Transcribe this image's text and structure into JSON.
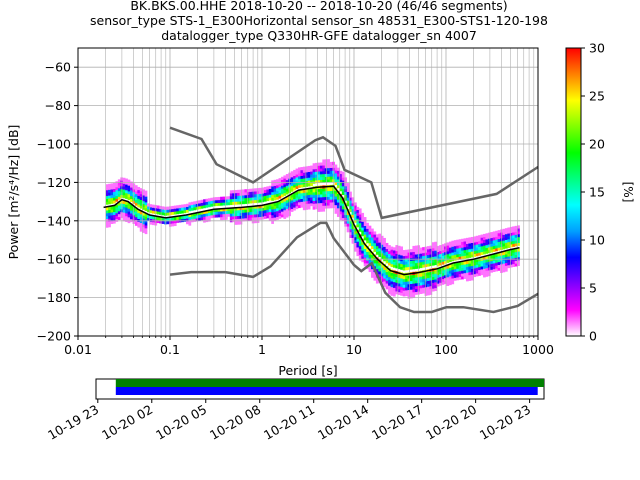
{
  "header": {
    "line1": "BK.BKS.00.HHE   2018-10-20 -- 2018-10-20  (46/46 segments)",
    "line2": "sensor_type STS-1_E300Horizontal sensor_sn 48531_E300-STS1-120-198",
    "line3": "datalogger_type Q330HR-GFE datalogger_sn 4007"
  },
  "chart_data": [
    {
      "type": "heatmap",
      "xlabel": "Period [s]",
      "ylabel": "Power [m²/s⁴/Hz] [dB]",
      "xscale": "log",
      "xlim": [
        0.01,
        1000
      ],
      "ylim": [
        -200,
        -50
      ],
      "x_ticks": [
        0.01,
        0.1,
        1,
        10,
        100,
        1000
      ],
      "x_tick_labels": [
        "0.01",
        "0.1",
        "1",
        "10",
        "100",
        "1000"
      ],
      "y_ticks": [
        -200,
        -180,
        -160,
        -140,
        -120,
        -100,
        -80,
        -60
      ],
      "y_tick_labels": [
        "−200",
        "−180",
        "−160",
        "−140",
        "−120",
        "−100",
        "−80",
        "−60"
      ],
      "grid": true,
      "colorbar": {
        "label": "[%]",
        "range": [
          0,
          30
        ],
        "ticks": [
          0,
          5,
          10,
          15,
          20,
          25,
          30
        ],
        "tick_labels": [
          "0",
          "5",
          "10",
          "15",
          "20",
          "25",
          "30"
        ],
        "colors": [
          "#ffffff",
          "#ff00ff",
          "#7f00ff",
          "#0000ff",
          "#00a0ff",
          "#00ffff",
          "#00ff80",
          "#00ff00",
          "#80ff00",
          "#ffff00",
          "#ff8000",
          "#ff0000"
        ]
      },
      "noise_models": {
        "color": "#666666",
        "high_model": {
          "x": [
            0.1,
            0.22,
            0.32,
            0.8,
            3.8,
            4.6,
            6.3,
            7.9,
            15.4,
            20,
            354.8,
            1000
          ],
          "y": [
            -91.5,
            -97.4,
            -110.5,
            -120,
            -98,
            -96.5,
            -101,
            -113.5,
            -120,
            -138.5,
            -126,
            -112
          ]
        },
        "low_model": {
          "x": [
            0.1,
            0.17,
            0.4,
            0.8,
            1.24,
            2.4,
            4.3,
            5,
            6,
            10,
            12,
            15.6,
            21.9,
            31.6,
            45,
            70,
            101,
            154,
            328,
            600,
            1000
          ],
          "y": [
            -168,
            -166.7,
            -166.7,
            -169.2,
            -163.7,
            -148.6,
            -141.1,
            -141.1,
            -149,
            -163,
            -166.2,
            -162.1,
            -177.5,
            -185,
            -187.5,
            -187.5,
            -185,
            -185,
            -187.5,
            -184.4,
            -178
          ]
        }
      },
      "psd_data_range_x": [
        0.02,
        630
      ],
      "psd_spread_db": [
        10,
        4,
        5,
        8,
        10,
        12,
        12,
        12,
        10,
        10
      ],
      "mean_curve": {
        "color": "#000000",
        "x": [
          0.019,
          0.025,
          0.03,
          0.035,
          0.045,
          0.06,
          0.09,
          0.15,
          0.3,
          0.6,
          1.0,
          1.5,
          2.5,
          4.0,
          6.0,
          7.5,
          10,
          13,
          18,
          25,
          35,
          50,
          80,
          120,
          200,
          350,
          500,
          630
        ],
        "y": [
          -133,
          -132,
          -129,
          -130,
          -134,
          -137,
          -138.5,
          -137,
          -134,
          -133,
          -132,
          -130,
          -124,
          -122.5,
          -122,
          -128,
          -142,
          -152,
          -160,
          -166,
          -168,
          -167,
          -165,
          -162,
          -160,
          -157,
          -155,
          -154
        ]
      }
    },
    {
      "type": "bar",
      "title": "",
      "x_tick_labels": [
        "10-19 23",
        "10-20 02",
        "10-20 05",
        "10-20 08",
        "10-20 11",
        "10-20 14",
        "10-20 17",
        "10-20 20",
        "10-20 23"
      ],
      "xlim_hours": [
        -1.1,
        23.8
      ],
      "x_ticks_hours": [
        -1,
        2,
        5,
        8,
        11,
        14,
        17,
        20,
        23
      ],
      "series": [
        {
          "color": "#008000",
          "start_hours": 0.0,
          "end_hours": 23.9
        },
        {
          "color": "#0000ff",
          "start_hours": 0.0,
          "end_hours": 23.45
        }
      ]
    }
  ]
}
